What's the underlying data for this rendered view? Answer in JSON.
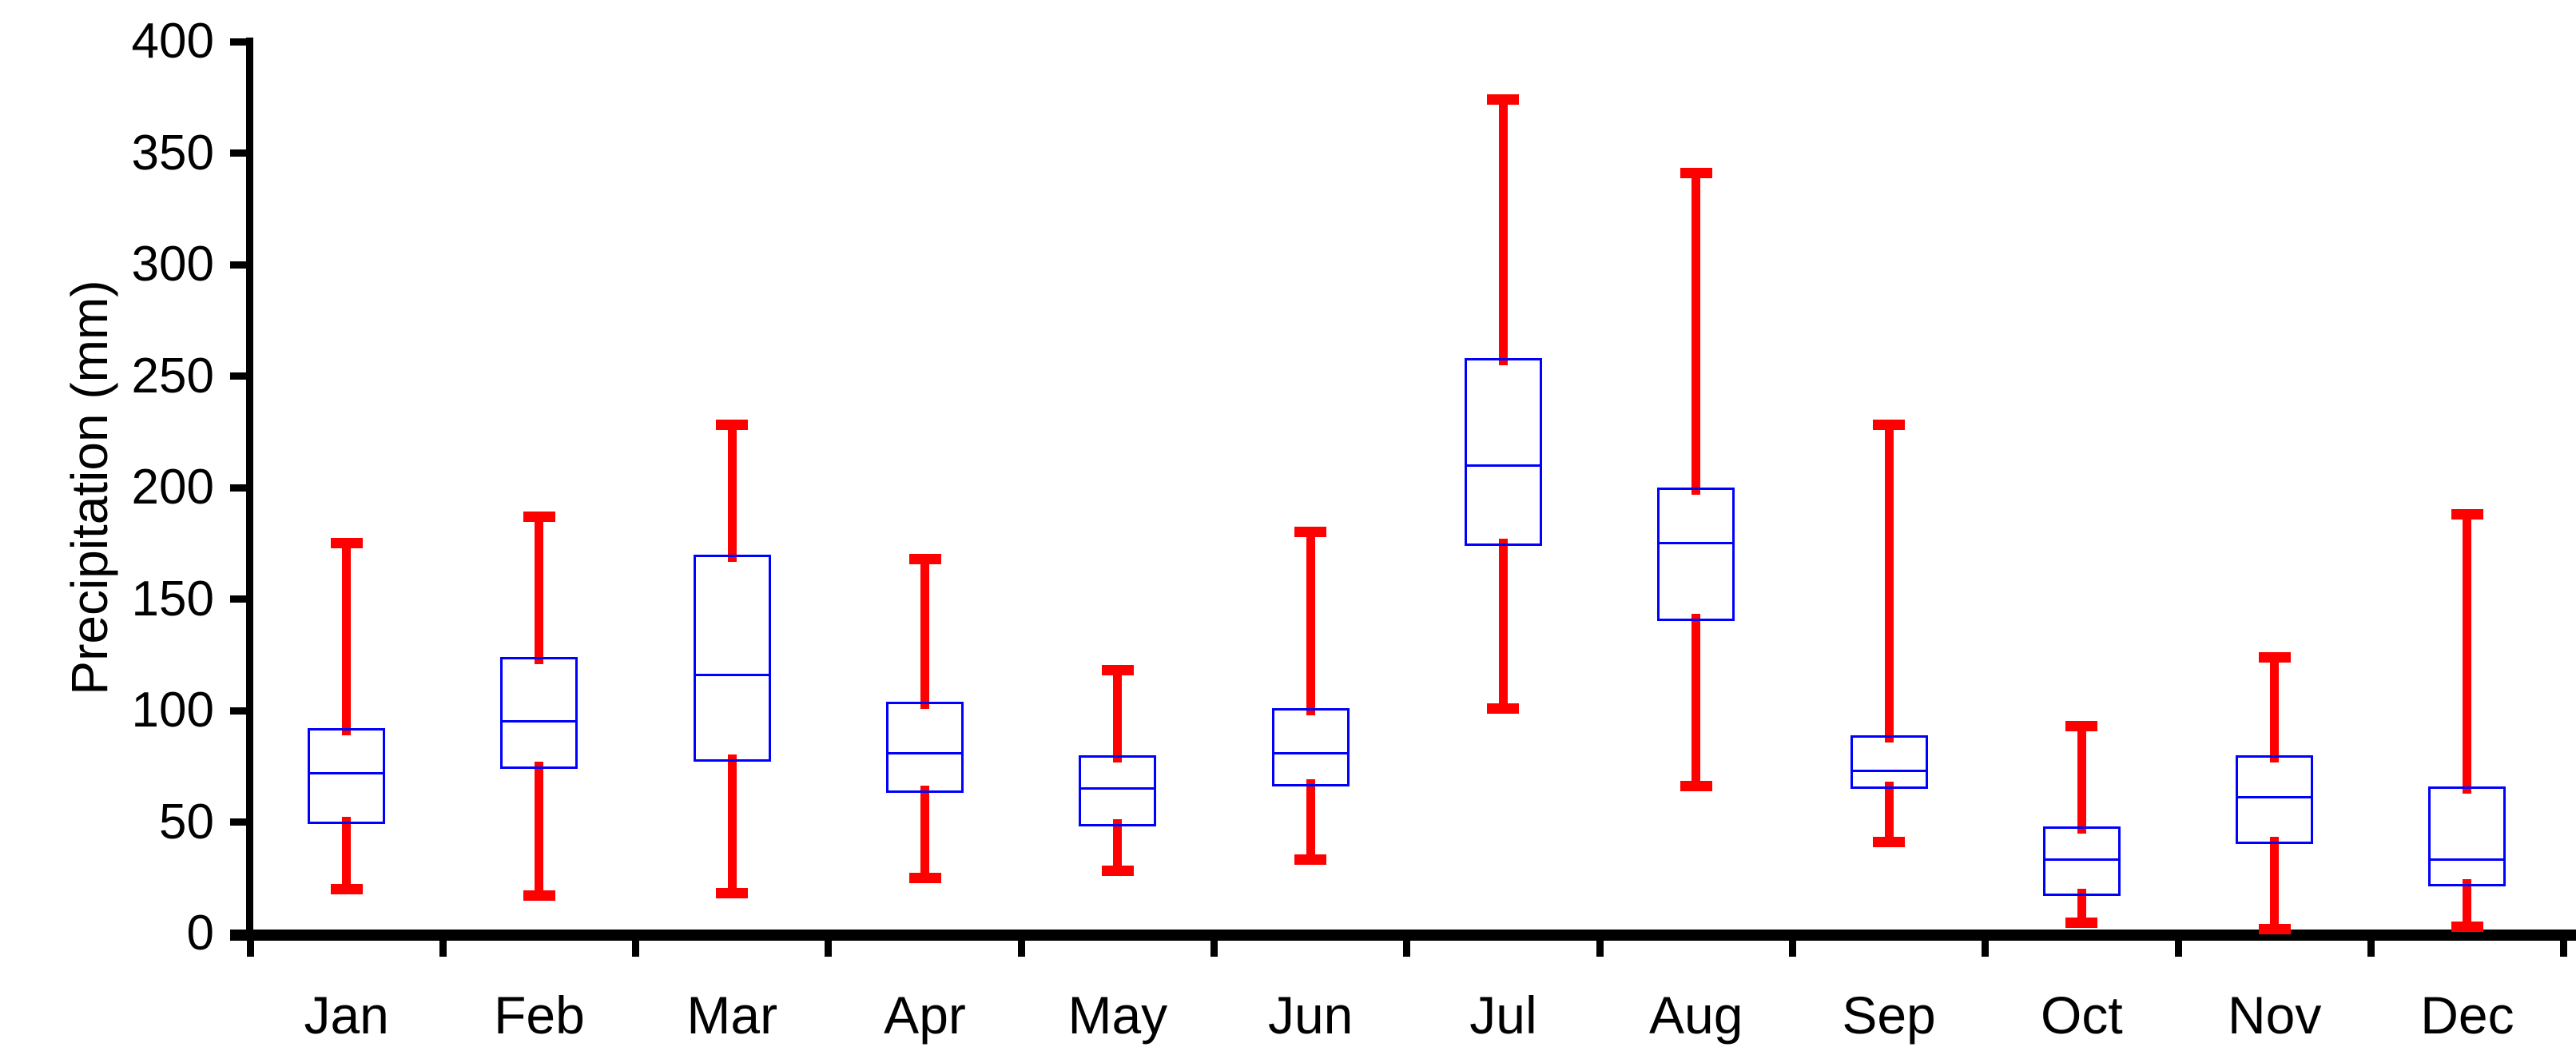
{
  "chart_data": {
    "type": "boxplot",
    "title": "",
    "xlabel": "",
    "ylabel": "Precipitation (mm)",
    "ylim": [
      0,
      400
    ],
    "ytick_step": 50,
    "ytick_labels": [
      "0",
      "50",
      "100",
      "150",
      "200",
      "250",
      "300",
      "350",
      "400"
    ],
    "categories": [
      "Jan",
      "Feb",
      "Mar",
      "Apr",
      "May",
      "Jun",
      "Jul",
      "Aug",
      "Sep",
      "Oct",
      "Nov",
      "Dec"
    ],
    "series": [
      {
        "name": "Jan",
        "min": 20,
        "q1": 49,
        "median": 72,
        "q3": 92,
        "max": 175
      },
      {
        "name": "Feb",
        "min": 17,
        "q1": 74,
        "median": 95,
        "q3": 124,
        "max": 187
      },
      {
        "name": "Mar",
        "min": 18,
        "q1": 77,
        "median": 116,
        "q3": 170,
        "max": 228
      },
      {
        "name": "Apr",
        "min": 25,
        "q1": 63,
        "median": 81,
        "q3": 104,
        "max": 168
      },
      {
        "name": "May",
        "min": 28,
        "q1": 48,
        "median": 65,
        "q3": 80,
        "max": 118
      },
      {
        "name": "Jun",
        "min": 33,
        "q1": 66,
        "median": 81,
        "q3": 101,
        "max": 180
      },
      {
        "name": "Jul",
        "min": 101,
        "q1": 174,
        "median": 210,
        "q3": 258,
        "max": 374
      },
      {
        "name": "Aug",
        "min": 66,
        "q1": 140,
        "median": 175,
        "q3": 200,
        "max": 341
      },
      {
        "name": "Sep",
        "min": 41,
        "q1": 65,
        "median": 73,
        "q3": 89,
        "max": 228
      },
      {
        "name": "Oct",
        "min": 5,
        "q1": 17,
        "median": 33,
        "q3": 48,
        "max": 93
      },
      {
        "name": "Nov",
        "min": 2,
        "q1": 40,
        "median": 61,
        "q3": 80,
        "max": 124
      },
      {
        "name": "Dec",
        "min": 3,
        "q1": 21,
        "median": 33,
        "q3": 66,
        "max": 188
      }
    ],
    "colors": {
      "whisker": "#FF0000",
      "box_border": "#0000FF",
      "median": "#0000FF",
      "axis": "#000000",
      "background": "#FFFFFF"
    },
    "grid": false,
    "legend_position": "none"
  }
}
